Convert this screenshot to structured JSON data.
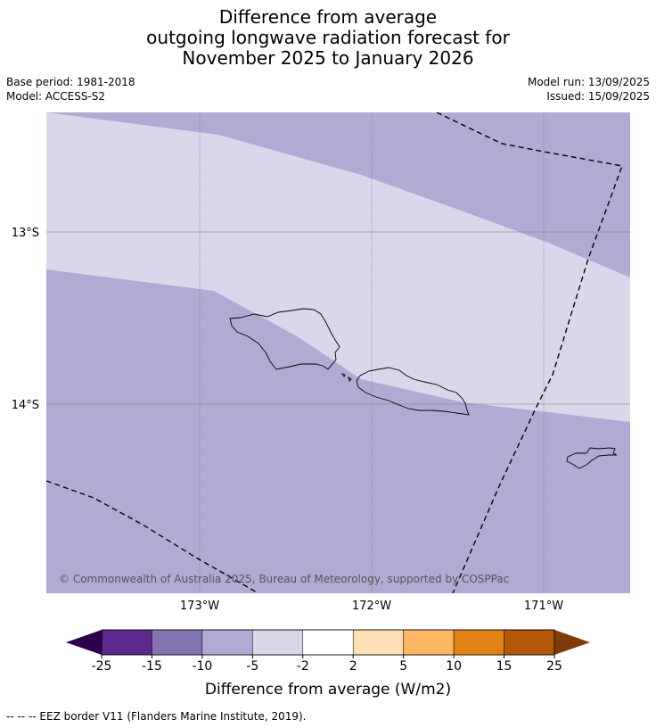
{
  "title": {
    "line1": "Difference from average",
    "line2": "outgoing longwave radiation forecast for",
    "line3": "November 2025 to January 2026"
  },
  "meta": {
    "base_period": "Base period: 1981-2018",
    "model": "Model: ACCESS-S2",
    "model_run": "Model run: 13/09/2025",
    "issued": "Issued: 15/09/2025"
  },
  "map": {
    "lat_labels": [
      "13°S",
      "14°S"
    ],
    "lon_labels": [
      "173°W",
      "172°W",
      "171°W"
    ],
    "copyright": "© Commonwealth of Australia 2025, Bureau of Meteorology, supported by COSPPac",
    "fill_colors": {
      "light_band": "#d8d8ea",
      "main_band": "#b1abd3"
    }
  },
  "colorbar": {
    "ticks": [
      "-25",
      "-15",
      "-10",
      "-5",
      "-2",
      "2",
      "5",
      "10",
      "15",
      "25"
    ],
    "colors": [
      "#5c2a8f",
      "#8473b1",
      "#b1abd3",
      "#d8d8ea",
      "#ffffff",
      "#fee0b6",
      "#fdb863",
      "#e08214",
      "#b35806"
    ],
    "under_color": "#2d004b",
    "over_color": "#7f3b08",
    "label": "Difference from average (W/m2)"
  },
  "footer": {
    "text": "--  --  -- EEZ border V11 (Flanders Marine Institute, 2019)."
  }
}
